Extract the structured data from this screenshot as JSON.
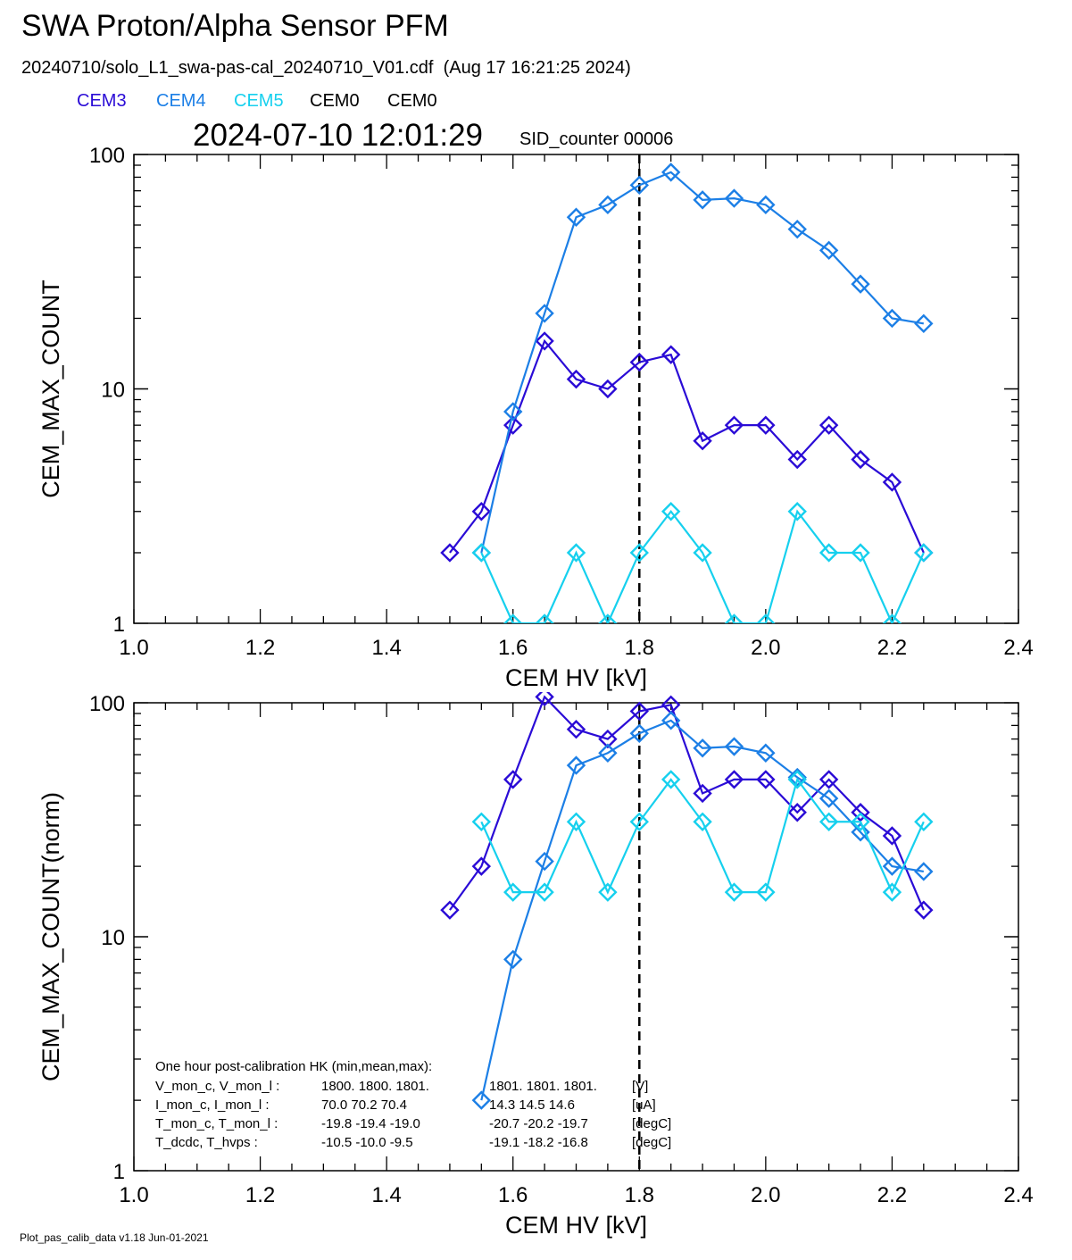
{
  "title": "SWA Proton/Alpha Sensor PFM",
  "subtitle": "20240710/solo_L1_swa-pas-cal_20240710_V01.cdf  (Aug 17 16:21:25 2024)",
  "legend": [
    {
      "label": "CEM3",
      "color": "#2a0bd6"
    },
    {
      "label": "CEM4",
      "color": "#1c7fe6"
    },
    {
      "label": "CEM5",
      "color": "#16d0ee"
    },
    {
      "label": "CEM0",
      "color": "#000000"
    },
    {
      "label": "CEM0",
      "color": "#000000"
    }
  ],
  "timestamp": "2024-07-10 12:01:29",
  "sid_counter": "SID_counter 00006",
  "footer": "Plot_pas_calib_data v1.18 Jun-01-2021",
  "chart_data": [
    {
      "type": "line",
      "xlabel": "CEM HV [kV]",
      "ylabel": "CEM_MAX_COUNT",
      "xlim": [
        1.0,
        2.4
      ],
      "ylim": [
        1,
        100
      ],
      "yscale": "log",
      "xticks": [
        "1.0",
        "1.2",
        "1.4",
        "1.6",
        "1.8",
        "2.0",
        "2.2",
        "2.4"
      ],
      "yticks": [
        "1",
        "10",
        "100"
      ],
      "vline": 1.8,
      "series": [
        {
          "name": "CEM3",
          "color": "#2a0bd6",
          "x": [
            1.5,
            1.55,
            1.6,
            1.65,
            1.7,
            1.75,
            1.8,
            1.85,
            1.9,
            1.95,
            2.0,
            2.05,
            2.1,
            2.15,
            2.2,
            2.25
          ],
          "y": [
            2,
            3,
            7,
            16,
            11,
            10,
            13,
            14,
            6,
            7,
            7,
            5,
            7,
            5,
            4,
            2
          ]
        },
        {
          "name": "CEM4",
          "color": "#1c7fe6",
          "x": [
            1.55,
            1.6,
            1.65,
            1.7,
            1.75,
            1.8,
            1.85,
            1.9,
            1.95,
            2.0,
            2.05,
            2.1,
            2.15,
            2.2,
            2.25
          ],
          "y": [
            2,
            8,
            21,
            54,
            61,
            74,
            84,
            64,
            65,
            61,
            48,
            39,
            28,
            20,
            19
          ]
        },
        {
          "name": "CEM5",
          "color": "#16d0ee",
          "x": [
            1.55,
            1.6,
            1.65,
            1.7,
            1.75,
            1.8,
            1.85,
            1.9,
            1.95,
            2.0,
            2.05,
            2.1,
            2.15,
            2.2,
            2.25
          ],
          "y": [
            2,
            1,
            1,
            2,
            1,
            2,
            3,
            2,
            1,
            1,
            3,
            2,
            2,
            1,
            2
          ]
        }
      ]
    },
    {
      "type": "line",
      "xlabel": "CEM HV [kV]",
      "ylabel": "CEM_MAX_COUNT(norm)",
      "xlim": [
        1.0,
        2.4
      ],
      "ylim": [
        1,
        100
      ],
      "yscale": "log",
      "xticks": [
        "1.0",
        "1.2",
        "1.4",
        "1.6",
        "1.8",
        "2.0",
        "2.2",
        "2.4"
      ],
      "yticks": [
        "1",
        "10",
        "100"
      ],
      "vline": 1.8,
      "series": [
        {
          "name": "CEM3",
          "color": "#2a0bd6",
          "x": [
            1.5,
            1.55,
            1.6,
            1.65,
            1.7,
            1.75,
            1.8,
            1.85,
            1.9,
            1.95,
            2.0,
            2.05,
            2.1,
            2.15,
            2.2,
            2.25
          ],
          "y": [
            13,
            20,
            47,
            106,
            77,
            70,
            92,
            98,
            41,
            47,
            47,
            34,
            47,
            34,
            27,
            13
          ]
        },
        {
          "name": "CEM4",
          "color": "#1c7fe6",
          "x": [
            1.55,
            1.6,
            1.65,
            1.7,
            1.75,
            1.8,
            1.85,
            1.9,
            1.95,
            2.0,
            2.05,
            2.1,
            2.15,
            2.2,
            2.25
          ],
          "y": [
            2,
            8,
            21,
            54,
            61,
            74,
            84,
            64,
            65,
            61,
            48,
            39,
            28,
            20,
            19
          ]
        },
        {
          "name": "CEM5",
          "color": "#16d0ee",
          "x": [
            1.55,
            1.6,
            1.65,
            1.7,
            1.75,
            1.8,
            1.85,
            1.9,
            1.95,
            2.0,
            2.05,
            2.1,
            2.15,
            2.2,
            2.25
          ],
          "y": [
            31,
            15.5,
            15.5,
            31,
            15.5,
            31,
            47,
            31,
            15.5,
            15.5,
            47,
            31,
            31,
            15.5,
            31
          ]
        }
      ],
      "annotation": {
        "heading": "One hour post-calibration HK (min,mean,max):",
        "rows": [
          {
            "label": "V_mon_c, V_mon_l :",
            "c": "1800.  1800.  1801.",
            "l": "1801.  1801.  1801.",
            "unit": "[V]"
          },
          {
            "label": "I_mon_c,  I_mon_l :",
            "c": "70.0   70.2   70.4",
            "l": "14.3   14.5   14.6",
            "unit": "[uA]"
          },
          {
            "label": "T_mon_c, T_mon_l :",
            "c": "-19.8  -19.4  -19.0",
            "l": "-20.7  -20.2  -19.7",
            "unit": "[degC]"
          },
          {
            "label": "T_dcdc,    T_hvps :",
            "c": "-10.5  -10.0   -9.5",
            "l": "-19.1  -18.2  -16.8",
            "unit": "[degC]"
          }
        ]
      }
    }
  ]
}
